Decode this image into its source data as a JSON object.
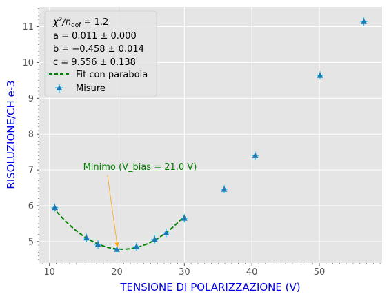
{
  "chart_data": {
    "type": "scatter",
    "title": "",
    "xlabel": "TENSIONE DI POLARIZZAZIONE (V)",
    "ylabel": "RISOLUZIONE/CH e-3",
    "xlim": [
      8.5,
      59.3
    ],
    "ylim": [
      4.4,
      11.55
    ],
    "grid": true,
    "xticks": [
      10,
      20,
      30,
      40,
      50
    ],
    "yticks": [
      5,
      6,
      7,
      8,
      9,
      10,
      11
    ],
    "series": [
      {
        "name": "Misure",
        "kind": "points",
        "color": "#1f77b4",
        "errcolor": "#00ccff",
        "x": [
          10.8,
          15.5,
          17.2,
          20.0,
          22.9,
          25.6,
          27.3,
          30.0,
          35.9,
          40.5,
          50.1,
          56.6
        ],
        "y": [
          5.95,
          5.1,
          4.92,
          4.78,
          4.86,
          5.06,
          5.24,
          5.65,
          6.46,
          7.4,
          9.64,
          11.14
        ]
      },
      {
        "name": "Fit con parabola",
        "kind": "curve",
        "color": "#008000",
        "x_range": [
          10.5,
          30.0
        ],
        "coefficients": {
          "a": 0.011,
          "b": -0.458,
          "c": 9.556
        }
      }
    ],
    "legend": {
      "location": "top-left",
      "stats": [
        {
          "prefix": "χ",
          "sup": "2",
          "mid": "/n",
          "sub": "dof",
          "suffix": " = 1.2"
        },
        {
          "text": "a = 0.011 ± 0.000"
        },
        {
          "text": "b = −0.458 ± 0.014"
        },
        {
          "text": "c = 9.556 ± 0.138"
        }
      ],
      "entries": [
        "Fit con parabola",
        "Misure"
      ]
    },
    "annotation": {
      "text": "Minimo (V_bias = 21.0 V)",
      "text_x": 15.0,
      "text_y": 7.0,
      "point_x": 20.1,
      "point_y": 4.78,
      "text_color": "#008000",
      "arrow_color": "#ffa500"
    }
  },
  "colors": {
    "plot_background": "#e5e5e5",
    "grid": "#ffffff",
    "axis_title": "#0000e6",
    "tick_label": "#555555"
  }
}
